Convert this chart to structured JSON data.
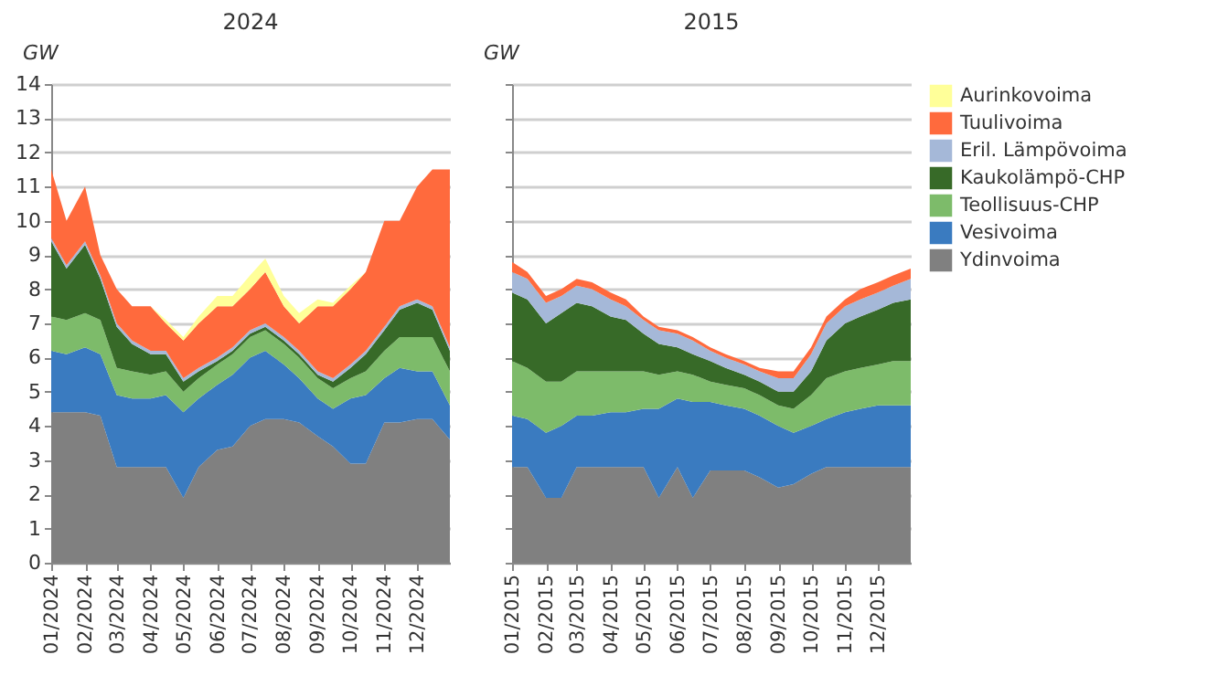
{
  "chart_data": [
    {
      "type": "area",
      "stacked": true,
      "title": "2024",
      "ylabel": "GW",
      "grid": "y",
      "legend": "right",
      "ylim": [
        0,
        14
      ],
      "yticks": [
        0,
        1,
        2,
        3,
        4,
        5,
        6,
        7,
        8,
        9,
        10,
        11,
        12,
        13,
        14
      ],
      "xlim": [
        "2024-01-01",
        "2024-12-31"
      ],
      "xticks": [
        {
          "value": "2024-01-01",
          "label": "01/2024"
        },
        {
          "value": "2024-02-01",
          "label": "02/2024"
        },
        {
          "value": "2024-03-01",
          "label": "03/2024"
        },
        {
          "value": "2024-04-01",
          "label": "04/2024"
        },
        {
          "value": "2024-05-01",
          "label": "05/2024"
        },
        {
          "value": "2024-06-01",
          "label": "06/2024"
        },
        {
          "value": "2024-07-01",
          "label": "07/2024"
        },
        {
          "value": "2024-08-01",
          "label": "08/2024"
        },
        {
          "value": "2024-09-01",
          "label": "09/2024"
        },
        {
          "value": "2024-10-01",
          "label": "10/2024"
        },
        {
          "value": "2024-11-01",
          "label": "11/2024"
        },
        {
          "value": "2024-12-01",
          "label": "12/2024"
        }
      ],
      "x": [
        "2024-01-01",
        "2024-01-15",
        "2024-02-01",
        "2024-02-15",
        "2024-03-01",
        "2024-03-15",
        "2024-04-01",
        "2024-04-15",
        "2024-05-01",
        "2024-05-15",
        "2024-06-01",
        "2024-06-15",
        "2024-07-01",
        "2024-07-15",
        "2024-08-01",
        "2024-08-15",
        "2024-09-01",
        "2024-09-15",
        "2024-10-01",
        "2024-10-15",
        "2024-11-01",
        "2024-11-15",
        "2024-12-01",
        "2024-12-15",
        "2024-12-31"
      ],
      "series": [
        {
          "name": "Ydinvoima",
          "color": "#808080",
          "values": [
            4.4,
            4.4,
            4.4,
            4.3,
            2.8,
            2.8,
            2.8,
            2.8,
            1.9,
            2.8,
            3.3,
            3.4,
            4.0,
            4.2,
            4.2,
            4.1,
            3.7,
            3.4,
            2.9,
            2.9,
            4.1,
            4.1,
            4.2,
            4.2,
            3.6
          ]
        },
        {
          "name": "Vesivoima",
          "color": "#3a7bc0",
          "values": [
            1.8,
            1.7,
            1.9,
            1.8,
            2.1,
            2.0,
            2.0,
            2.1,
            2.5,
            2.0,
            1.9,
            2.1,
            2.0,
            2.0,
            1.6,
            1.3,
            1.1,
            1.1,
            1.9,
            2.0,
            1.3,
            1.6,
            1.4,
            1.4,
            1.0
          ]
        },
        {
          "name": "Teollisuus-CHP",
          "color": "#7dbb6a",
          "values": [
            1.0,
            1.0,
            1.0,
            1.0,
            0.8,
            0.8,
            0.7,
            0.7,
            0.6,
            0.6,
            0.6,
            0.6,
            0.6,
            0.6,
            0.6,
            0.6,
            0.6,
            0.6,
            0.6,
            0.7,
            0.8,
            0.9,
            1.0,
            1.0,
            1.0
          ]
        },
        {
          "name": "Kaukolämpö-CHP",
          "color": "#376a28",
          "values": [
            2.2,
            1.5,
            2.0,
            1.2,
            1.2,
            0.8,
            0.6,
            0.5,
            0.3,
            0.2,
            0.1,
            0.1,
            0.1,
            0.1,
            0.1,
            0.1,
            0.1,
            0.2,
            0.3,
            0.5,
            0.6,
            0.8,
            1.0,
            0.8,
            0.6
          ]
        },
        {
          "name": "Eril. Lämpövoima",
          "color": "#a5b8d8",
          "values": [
            0.1,
            0.1,
            0.1,
            0.1,
            0.1,
            0.1,
            0.1,
            0.1,
            0.1,
            0.1,
            0.1,
            0.1,
            0.1,
            0.1,
            0.1,
            0.1,
            0.1,
            0.1,
            0.1,
            0.1,
            0.1,
            0.1,
            0.1,
            0.1,
            0.1
          ]
        },
        {
          "name": "Tuulivoima",
          "color": "#ff6a3d",
          "values": [
            2.0,
            1.3,
            1.6,
            0.6,
            1.0,
            1.0,
            1.3,
            0.8,
            1.1,
            1.3,
            1.5,
            1.2,
            1.2,
            1.5,
            0.9,
            0.8,
            1.9,
            2.1,
            2.2,
            2.3,
            3.1,
            2.5,
            3.3,
            4.0,
            5.2
          ]
        },
        {
          "name": "Aurinkovoima",
          "color": "#ffff99",
          "values": [
            0,
            0,
            0,
            0,
            0,
            0,
            0,
            0.1,
            0.1,
            0.2,
            0.3,
            0.3,
            0.4,
            0.4,
            0.3,
            0.3,
            0.2,
            0.1,
            0.1,
            0,
            0,
            0,
            0,
            0,
            0
          ]
        }
      ]
    },
    {
      "type": "area",
      "stacked": true,
      "title": "2015",
      "ylabel": "GW",
      "grid": "y",
      "legend": "right",
      "tick_labels": "x",
      "ylim": [
        0,
        14
      ],
      "yticks": [
        0,
        1,
        2,
        3,
        4,
        5,
        6,
        7,
        8,
        9,
        10,
        11,
        12,
        13,
        14
      ],
      "xlim": [
        "2015-01-01",
        "2015-12-31"
      ],
      "xticks": [
        {
          "value": "2015-01-01",
          "label": "01/2015"
        },
        {
          "value": "2015-02-01",
          "label": "02/2015"
        },
        {
          "value": "2015-03-01",
          "label": "03/2015"
        },
        {
          "value": "2015-04-01",
          "label": "04/2015"
        },
        {
          "value": "2015-05-01",
          "label": "05/2015"
        },
        {
          "value": "2015-06-01",
          "label": "06/2015"
        },
        {
          "value": "2015-07-01",
          "label": "07/2015"
        },
        {
          "value": "2015-08-01",
          "label": "08/2015"
        },
        {
          "value": "2015-09-01",
          "label": "09/2015"
        },
        {
          "value": "2015-10-01",
          "label": "10/2015"
        },
        {
          "value": "2015-11-01",
          "label": "11/2015"
        },
        {
          "value": "2015-12-01",
          "label": "12/2015"
        }
      ],
      "x": [
        "2015-01-01",
        "2015-01-15",
        "2015-02-01",
        "2015-02-15",
        "2015-03-01",
        "2015-03-15",
        "2015-04-01",
        "2015-04-15",
        "2015-05-01",
        "2015-05-15",
        "2015-06-01",
        "2015-06-15",
        "2015-07-01",
        "2015-07-15",
        "2015-08-01",
        "2015-08-15",
        "2015-09-01",
        "2015-09-15",
        "2015-10-01",
        "2015-10-15",
        "2015-11-01",
        "2015-11-15",
        "2015-12-01",
        "2015-12-15",
        "2015-12-31"
      ],
      "series": [
        {
          "name": "Ydinvoima",
          "color": "#808080",
          "values": [
            2.8,
            2.8,
            1.9,
            1.9,
            2.8,
            2.8,
            2.8,
            2.8,
            2.8,
            1.9,
            2.8,
            1.9,
            2.7,
            2.7,
            2.7,
            2.5,
            2.2,
            2.3,
            2.6,
            2.8,
            2.8,
            2.8,
            2.8,
            2.8,
            2.8
          ]
        },
        {
          "name": "Vesivoima",
          "color": "#3a7bc0",
          "values": [
            1.5,
            1.4,
            1.9,
            2.1,
            1.5,
            1.5,
            1.6,
            1.6,
            1.7,
            2.6,
            2.0,
            2.8,
            2.0,
            1.9,
            1.8,
            1.8,
            1.8,
            1.5,
            1.4,
            1.4,
            1.6,
            1.7,
            1.8,
            1.8,
            1.8
          ]
        },
        {
          "name": "Teollisuus-CHP",
          "color": "#7dbb6a",
          "values": [
            1.6,
            1.5,
            1.5,
            1.3,
            1.3,
            1.3,
            1.2,
            1.2,
            1.1,
            1.0,
            0.8,
            0.8,
            0.6,
            0.6,
            0.6,
            0.6,
            0.6,
            0.7,
            0.9,
            1.2,
            1.2,
            1.2,
            1.2,
            1.3,
            1.3
          ]
        },
        {
          "name": "Kaukolämpö-CHP",
          "color": "#376a28",
          "values": [
            2.0,
            2.0,
            1.7,
            2.0,
            2.0,
            1.9,
            1.6,
            1.5,
            1.1,
            0.9,
            0.7,
            0.6,
            0.6,
            0.5,
            0.4,
            0.4,
            0.4,
            0.5,
            0.7,
            1.1,
            1.4,
            1.5,
            1.6,
            1.7,
            1.8
          ]
        },
        {
          "name": "Eril. Lämpövoima",
          "color": "#a5b8d8",
          "values": [
            0.6,
            0.6,
            0.6,
            0.5,
            0.5,
            0.5,
            0.5,
            0.4,
            0.4,
            0.4,
            0.4,
            0.4,
            0.3,
            0.3,
            0.3,
            0.3,
            0.4,
            0.4,
            0.5,
            0.5,
            0.5,
            0.5,
            0.5,
            0.5,
            0.6
          ]
        },
        {
          "name": "Tuulivoima",
          "color": "#ff6a3d",
          "values": [
            0.3,
            0.2,
            0.2,
            0.2,
            0.2,
            0.2,
            0.2,
            0.2,
            0.1,
            0.1,
            0.1,
            0.1,
            0.1,
            0.1,
            0.1,
            0.1,
            0.2,
            0.2,
            0.2,
            0.2,
            0.2,
            0.3,
            0.3,
            0.3,
            0.3
          ]
        }
      ]
    }
  ]
}
